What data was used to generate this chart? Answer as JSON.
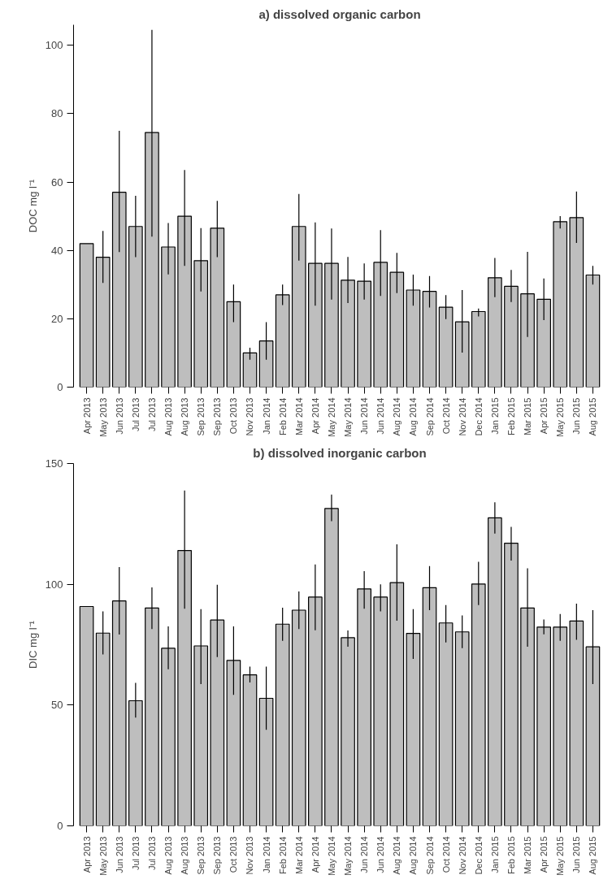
{
  "chart_data": [
    {
      "type": "bar",
      "title": "a) dissolved organic carbon",
      "ylabel": "DOC mg l⁻¹",
      "categories": [
        "Apr 2013",
        "May 2013",
        "Jun 2013",
        "Jul 2013",
        "Jul 2013",
        "Aug 2013",
        "Aug 2013",
        "Sep 2013",
        "Sep 2013",
        "Oct 2013",
        "Nov 2013",
        "Jan 2014",
        "Feb 2014",
        "Mar 2014",
        "Apr 2014",
        "May 2014",
        "May 2014",
        "Jun 2014",
        "Jun 2014",
        "Aug 2014",
        "Aug 2014",
        "Sep 2014",
        "Oct 2014",
        "Nov 2014",
        "Dec 2014",
        "Jan 2015",
        "Feb 2015",
        "Mar 2015",
        "Apr 2015",
        "May 2015",
        "Jun 2015",
        "Aug 2015"
      ],
      "values": [
        42,
        38,
        57,
        47,
        74.5,
        41,
        50,
        37,
        46.5,
        25,
        10,
        13.5,
        27,
        47,
        36.2,
        36.2,
        31.3,
        31,
        36.5,
        33.6,
        28.4,
        28,
        23.4,
        19.1,
        22.1,
        32,
        29.5,
        27.3,
        25.7,
        48.4,
        49.6,
        32.8
      ],
      "errors": [
        null,
        [
          30.5,
          45.7
        ],
        [
          39.5,
          75
        ],
        [
          38,
          56
        ],
        [
          44,
          104.5
        ],
        [
          33,
          48
        ],
        [
          35.5,
          63.5
        ],
        [
          28,
          46.5
        ],
        [
          38,
          54.5
        ],
        [
          19,
          30
        ],
        [
          8,
          11.5
        ],
        [
          8,
          19
        ],
        [
          24,
          30
        ],
        [
          37,
          56.5
        ],
        [
          23.8,
          48.2
        ],
        [
          25.6,
          46.4
        ],
        [
          24.6,
          38.1
        ],
        [
          25.6,
          36.2
        ],
        [
          26.7,
          45.9
        ],
        [
          27.5,
          39.3
        ],
        [
          23.8,
          32.9
        ],
        [
          23.3,
          32.5
        ],
        [
          19.9,
          26.9
        ],
        [
          10.1,
          28.4
        ],
        [
          20.7,
          23
        ],
        [
          26.3,
          37.8
        ],
        [
          24.9,
          34.3
        ],
        [
          14.7,
          39.6
        ],
        [
          19.6,
          31.8
        ],
        [
          46.4,
          50
        ],
        [
          42.2,
          57.2
        ],
        [
          30,
          35.5
        ]
      ],
      "color": "#bebebe",
      "ylim": [
        0,
        106
      ],
      "yticks": [
        0,
        20,
        40,
        60,
        80,
        100
      ],
      "grid": false
    },
    {
      "type": "bar",
      "title": "b) dissolved inorganic carbon",
      "ylabel": "DIC mg l⁻¹",
      "categories": [
        "Apr 2013",
        "May 2013",
        "Jun 2013",
        "Jul 2013",
        "Jul 2013",
        "Aug 2013",
        "Aug 2013",
        "Sep 2013",
        "Sep 2013",
        "Oct 2013",
        "Nov 2013",
        "Jan 2014",
        "Feb 2014",
        "Mar 2014",
        "Apr 2014",
        "May 2014",
        "May 2014",
        "Jun 2014",
        "Jun 2014",
        "Aug 2014",
        "Aug 2014",
        "Sep 2014",
        "Oct 2014",
        "Nov 2014",
        "Dec 2014",
        "Jan 2015",
        "Feb 2015",
        "Mar 2015",
        "Apr 2015",
        "May 2015",
        "Jun 2015",
        "Aug 2015"
      ],
      "values": [
        90.8,
        79.8,
        93.1,
        51.8,
        90.2,
        73.5,
        114,
        74.5,
        85.2,
        68.5,
        62.5,
        52.8,
        83.5,
        89.3,
        94.7,
        131.4,
        77.9,
        98.1,
        94.7,
        100.7,
        79.7,
        98.6,
        84,
        80.3,
        100.1,
        127.5,
        117,
        90.2,
        82.3,
        82.3,
        84.8,
        74.1
      ],
      "errors": [
        null,
        [
          71,
          88.8
        ],
        [
          79.2,
          107.1
        ],
        [
          44.8,
          59.2
        ],
        [
          81.5,
          98.7
        ],
        [
          64.8,
          82.6
        ],
        [
          89.9,
          138.8
        ],
        [
          58.7,
          89.7
        ],
        [
          69.9,
          99.8
        ],
        [
          54.2,
          82.6
        ],
        [
          59.4,
          65.9
        ],
        [
          39.8,
          65.9
        ],
        [
          76.6,
          90.3
        ],
        [
          81.5,
          97
        ],
        [
          81,
          108.2
        ],
        [
          126.1,
          137.1
        ],
        [
          74.2,
          80.9
        ],
        [
          89.9,
          105.4
        ],
        [
          88.8,
          100
        ],
        [
          84.9,
          116.5
        ],
        [
          69.1,
          89.7
        ],
        [
          89.3,
          107.5
        ],
        [
          75.9,
          91.4
        ],
        [
          73.6,
          87.1
        ],
        [
          91.4,
          109.3
        ],
        [
          121,
          133.9
        ],
        [
          109.8,
          123.8
        ],
        [
          74.2,
          106.6
        ],
        [
          79.3,
          85.4
        ],
        [
          76.6,
          87.7
        ],
        [
          77,
          92
        ],
        [
          58.7,
          89.3
        ]
      ],
      "color": "#bebebe",
      "ylim": [
        0,
        150
      ],
      "yticks": [
        0,
        50,
        100,
        150
      ],
      "grid": false
    }
  ]
}
